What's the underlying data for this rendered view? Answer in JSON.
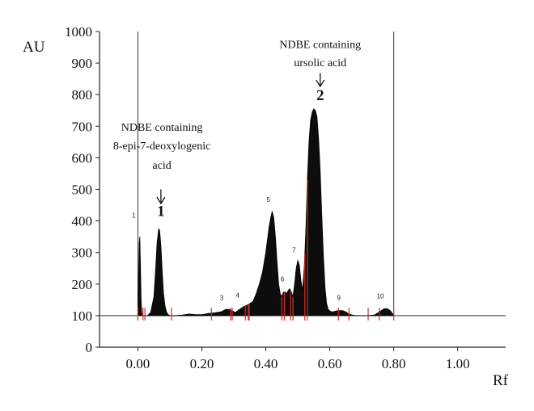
{
  "chart_data": {
    "type": "area",
    "xlabel": "Rf",
    "ylabel": "AU",
    "xlim": [
      -0.12,
      1.15
    ],
    "ylim": [
      0,
      1000
    ],
    "x_ticks": [
      "0.00",
      "0.20",
      "0.40",
      "0.60",
      "0.80",
      "1.00"
    ],
    "x_tick_values": [
      0.0,
      0.2,
      0.4,
      0.6,
      0.8,
      1.0
    ],
    "y_ticks": [
      "0",
      "100",
      "200",
      "300",
      "400",
      "500",
      "600",
      "700",
      "800",
      "900",
      "1000"
    ],
    "y_tick_values": [
      0,
      100,
      200,
      300,
      400,
      500,
      600,
      700,
      800,
      900,
      1000
    ],
    "baseline": 100,
    "vertical_lines": [
      0.0,
      0.8
    ],
    "grid": false,
    "series": [
      {
        "x": [
          0.0,
          0.002,
          0.004,
          0.006,
          0.008,
          0.01,
          0.012,
          0.014,
          0.016,
          0.02,
          0.03,
          0.04,
          0.05,
          0.055,
          0.06,
          0.065,
          0.068,
          0.072,
          0.076,
          0.08,
          0.085,
          0.09,
          0.095,
          0.1,
          0.11,
          0.12,
          0.14,
          0.16,
          0.18,
          0.2,
          0.22,
          0.24,
          0.26,
          0.275,
          0.285,
          0.295,
          0.305,
          0.315,
          0.33,
          0.345,
          0.36,
          0.37,
          0.38,
          0.39,
          0.4,
          0.41,
          0.415,
          0.42,
          0.425,
          0.43,
          0.435,
          0.44,
          0.445,
          0.45,
          0.455,
          0.46,
          0.465,
          0.47,
          0.475,
          0.48,
          0.485,
          0.49,
          0.495,
          0.5,
          0.505,
          0.51,
          0.515,
          0.52,
          0.525,
          0.53,
          0.535,
          0.54,
          0.545,
          0.55,
          0.555,
          0.56,
          0.565,
          0.57,
          0.575,
          0.58,
          0.585,
          0.59,
          0.595,
          0.6,
          0.605,
          0.61,
          0.62,
          0.63,
          0.64,
          0.65,
          0.66,
          0.67,
          0.68,
          0.7,
          0.72,
          0.74,
          0.76,
          0.77,
          0.78,
          0.79,
          0.8
        ],
        "y": [
          100,
          200,
          330,
          350,
          260,
          150,
          110,
          100,
          100,
          100,
          100,
          110,
          160,
          240,
          330,
          375,
          370,
          320,
          240,
          170,
          130,
          110,
          103,
          100,
          100,
          100,
          102,
          105,
          103,
          103,
          107,
          109,
          112,
          120,
          120,
          115,
          110,
          118,
          128,
          135,
          145,
          170,
          200,
          240,
          300,
          380,
          410,
          430,
          410,
          350,
          270,
          200,
          170,
          160,
          175,
          175,
          170,
          180,
          185,
          175,
          160,
          200,
          250,
          275,
          260,
          210,
          180,
          250,
          370,
          530,
          650,
          720,
          745,
          755,
          750,
          730,
          660,
          560,
          420,
          290,
          190,
          140,
          120,
          115,
          112,
          112,
          115,
          116,
          116,
          112,
          105,
          102,
          100,
          100,
          100,
          102,
          115,
          122,
          122,
          115,
          100
        ]
      }
    ],
    "peak_numbers": [
      {
        "label": "1",
        "x": -0.013,
        "y": 410
      },
      {
        "label": "3",
        "x": 0.262,
        "y": 150
      },
      {
        "label": "4",
        "x": 0.312,
        "y": 157
      },
      {
        "label": "5",
        "x": 0.408,
        "y": 460
      },
      {
        "label": "6",
        "x": 0.452,
        "y": 208
      },
      {
        "label": "7",
        "x": 0.488,
        "y": 300
      },
      {
        "label": "9",
        "x": 0.628,
        "y": 150
      },
      {
        "label": "10",
        "x": 0.758,
        "y": 155
      }
    ],
    "integration_marks": [
      0.0,
      0.016,
      0.022,
      0.105,
      0.23,
      0.29,
      0.295,
      0.336,
      0.345,
      0.348,
      0.45,
      0.458,
      0.478,
      0.485,
      0.522,
      0.53,
      0.627,
      0.66,
      0.72,
      0.755,
      0.8
    ],
    "annotations": [
      {
        "lines": [
          "NDBE containing",
          "8-epi-7-deoxylogenic",
          "acid"
        ],
        "peak_label": "1",
        "arrow_x": 0.072,
        "text_x": 0.075,
        "arrow_top": 500,
        "arrow_bottom": 455,
        "line_values": [
          685,
          627,
          565
        ],
        "peak_value": 416
      },
      {
        "lines": [
          "NDBE containing",
          "ursolic acid"
        ],
        "peak_label": "2",
        "arrow_x": 0.57,
        "text_x": 0.57,
        "arrow_top": 868,
        "arrow_bottom": 826,
        "line_values": [
          948,
          890
        ],
        "peak_value": 783
      }
    ]
  }
}
